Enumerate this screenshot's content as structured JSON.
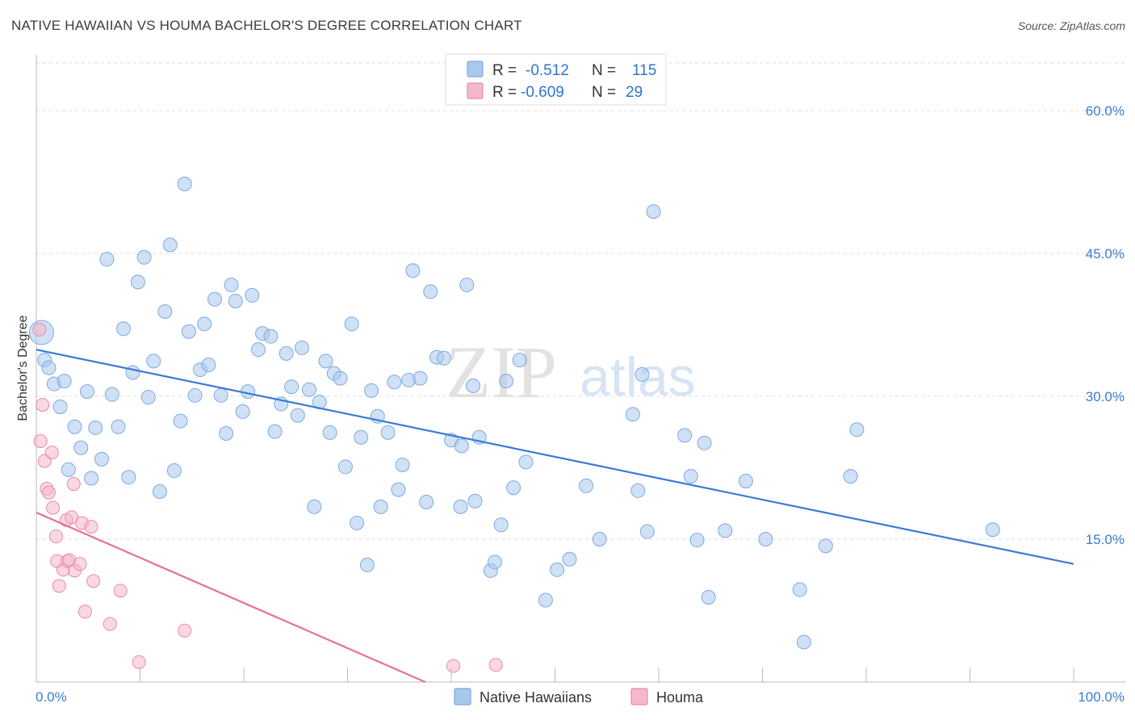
{
  "header": {
    "title": "NATIVE HAWAIIAN VS HOUMA BACHELOR'S DEGREE CORRELATION CHART",
    "source": "Source: ZipAtlas.com"
  },
  "watermark": {
    "part1": "ZIP",
    "part2": "atlas"
  },
  "legend": {
    "r_label": "R =",
    "n_label": "N =",
    "items": [
      {
        "r": "-0.512",
        "n": "115",
        "color": "#a9c8ee"
      },
      {
        "r": "-0.609",
        "n": "29",
        "color": "#f5b8cb"
      }
    ]
  },
  "bottom_legend": [
    "Native Hawaiians",
    "Houma"
  ],
  "chart_data": {
    "type": "scatter",
    "title": "NATIVE HAWAIIAN VS HOUMA BACHELOR'S DEGREE CORRELATION CHART",
    "xlabel": "",
    "ylabel": "Bachelor's Degree",
    "xlim": [
      0,
      100
    ],
    "ylim": [
      0,
      65
    ],
    "x_tick_labels": [
      "0.0%",
      "100.0%"
    ],
    "y_ticks": [
      15,
      30,
      45,
      60
    ],
    "y_tick_labels": [
      "15.0%",
      "30.0%",
      "45.0%",
      "60.0%"
    ],
    "grid": true,
    "legend_position": "top-center",
    "colors": {
      "blue": "#3a7bd5",
      "pink": "#e4709a",
      "blue_fill": "#a9c8ee",
      "pink_fill": "#f5b8cb"
    },
    "series": [
      {
        "name": "Native Hawaiians",
        "points": [
          [
            0.5,
            36.7
          ],
          [
            0.8,
            33.8
          ],
          [
            1.2,
            33.0
          ],
          [
            1.7,
            31.3
          ],
          [
            2.3,
            28.9
          ],
          [
            2.7,
            31.6
          ],
          [
            3.1,
            22.3
          ],
          [
            3.7,
            26.8
          ],
          [
            4.3,
            24.6
          ],
          [
            4.9,
            30.5
          ],
          [
            5.3,
            21.4
          ],
          [
            5.7,
            26.7
          ],
          [
            6.3,
            23.4
          ],
          [
            6.8,
            44.4
          ],
          [
            7.3,
            30.2
          ],
          [
            7.9,
            26.8
          ],
          [
            8.4,
            37.1
          ],
          [
            8.9,
            21.5
          ],
          [
            9.3,
            32.5
          ],
          [
            9.8,
            42.0
          ],
          [
            10.4,
            44.6
          ],
          [
            10.8,
            29.9
          ],
          [
            11.3,
            33.7
          ],
          [
            11.9,
            20.0
          ],
          [
            12.4,
            38.9
          ],
          [
            12.9,
            45.9
          ],
          [
            13.3,
            22.2
          ],
          [
            13.9,
            27.4
          ],
          [
            14.3,
            52.3
          ],
          [
            14.7,
            36.8
          ],
          [
            15.3,
            30.1
          ],
          [
            15.8,
            32.8
          ],
          [
            16.2,
            37.6
          ],
          [
            16.6,
            33.3
          ],
          [
            17.2,
            40.2
          ],
          [
            17.8,
            30.1
          ],
          [
            18.3,
            26.1
          ],
          [
            18.8,
            41.7
          ],
          [
            19.2,
            40.0
          ],
          [
            19.9,
            28.4
          ],
          [
            20.4,
            30.5
          ],
          [
            20.8,
            40.6
          ],
          [
            21.4,
            34.9
          ],
          [
            21.8,
            36.6
          ],
          [
            22.6,
            36.3
          ],
          [
            23.0,
            26.3
          ],
          [
            23.6,
            29.2
          ],
          [
            24.1,
            34.5
          ],
          [
            24.6,
            31.0
          ],
          [
            25.2,
            28.0
          ],
          [
            25.6,
            35.1
          ],
          [
            26.3,
            30.7
          ],
          [
            26.8,
            18.4
          ],
          [
            27.3,
            29.4
          ],
          [
            27.9,
            33.7
          ],
          [
            28.3,
            26.2
          ],
          [
            28.7,
            32.4
          ],
          [
            29.3,
            31.9
          ],
          [
            29.8,
            22.6
          ],
          [
            30.4,
            37.6
          ],
          [
            30.9,
            16.7
          ],
          [
            31.3,
            25.7
          ],
          [
            31.9,
            12.3
          ],
          [
            32.3,
            30.6
          ],
          [
            32.9,
            27.9
          ],
          [
            33.2,
            18.4
          ],
          [
            33.9,
            26.2
          ],
          [
            34.5,
            31.5
          ],
          [
            34.9,
            20.2
          ],
          [
            35.3,
            22.8
          ],
          [
            35.9,
            31.7
          ],
          [
            36.3,
            43.2
          ],
          [
            37.0,
            31.9
          ],
          [
            37.6,
            18.9
          ],
          [
            38.0,
            41.0
          ],
          [
            38.6,
            34.1
          ],
          [
            39.3,
            34.0
          ],
          [
            40.0,
            25.4
          ],
          [
            40.9,
            18.4
          ],
          [
            41.0,
            24.8
          ],
          [
            41.5,
            41.7
          ],
          [
            42.1,
            31.1
          ],
          [
            42.3,
            19.0
          ],
          [
            42.7,
            25.7
          ],
          [
            43.8,
            11.7
          ],
          [
            44.2,
            12.6
          ],
          [
            44.8,
            16.5
          ],
          [
            45.3,
            31.6
          ],
          [
            46.0,
            20.4
          ],
          [
            46.6,
            33.8
          ],
          [
            47.2,
            23.1
          ],
          [
            49.1,
            8.6
          ],
          [
            50.2,
            11.8
          ],
          [
            51.4,
            12.9
          ],
          [
            53.0,
            20.6
          ],
          [
            54.3,
            15.0
          ],
          [
            57.5,
            28.1
          ],
          [
            58.0,
            20.1
          ],
          [
            58.4,
            32.3
          ],
          [
            58.9,
            15.8
          ],
          [
            59.5,
            49.4
          ],
          [
            62.5,
            25.9
          ],
          [
            63.1,
            21.6
          ],
          [
            63.7,
            14.9
          ],
          [
            64.4,
            25.1
          ],
          [
            64.8,
            8.9
          ],
          [
            66.4,
            15.9
          ],
          [
            68.4,
            21.1
          ],
          [
            70.3,
            15.0
          ],
          [
            73.6,
            9.7
          ],
          [
            74.0,
            4.2
          ],
          [
            76.1,
            14.3
          ],
          [
            78.5,
            21.6
          ],
          [
            79.1,
            26.5
          ],
          [
            92.2,
            16.0
          ]
        ]
      },
      {
        "name": "Houma",
        "points": [
          [
            0.3,
            37.0
          ],
          [
            0.4,
            25.3
          ],
          [
            0.6,
            29.1
          ],
          [
            0.8,
            23.2
          ],
          [
            1.0,
            20.3
          ],
          [
            1.2,
            19.9
          ],
          [
            1.5,
            24.1
          ],
          [
            1.6,
            18.3
          ],
          [
            1.9,
            15.3
          ],
          [
            2.0,
            12.7
          ],
          [
            2.2,
            10.1
          ],
          [
            2.6,
            11.8
          ],
          [
            2.9,
            17.0
          ],
          [
            3.0,
            12.7
          ],
          [
            3.2,
            12.8
          ],
          [
            3.4,
            17.3
          ],
          [
            3.6,
            20.8
          ],
          [
            3.7,
            11.7
          ],
          [
            4.2,
            12.4
          ],
          [
            4.4,
            16.7
          ],
          [
            4.7,
            7.4
          ],
          [
            5.3,
            16.3
          ],
          [
            5.5,
            10.6
          ],
          [
            7.1,
            6.1
          ],
          [
            8.1,
            9.6
          ],
          [
            9.9,
            2.1
          ],
          [
            14.3,
            5.4
          ],
          [
            40.2,
            1.7
          ],
          [
            44.3,
            1.8
          ]
        ]
      }
    ],
    "trend_lines": [
      {
        "series": "Native Hawaiians",
        "x": [
          0,
          100
        ],
        "y": [
          34.9,
          12.4
        ]
      },
      {
        "series": "Houma",
        "x": [
          0,
          37.5
        ],
        "y": [
          17.8,
          0
        ]
      }
    ]
  }
}
